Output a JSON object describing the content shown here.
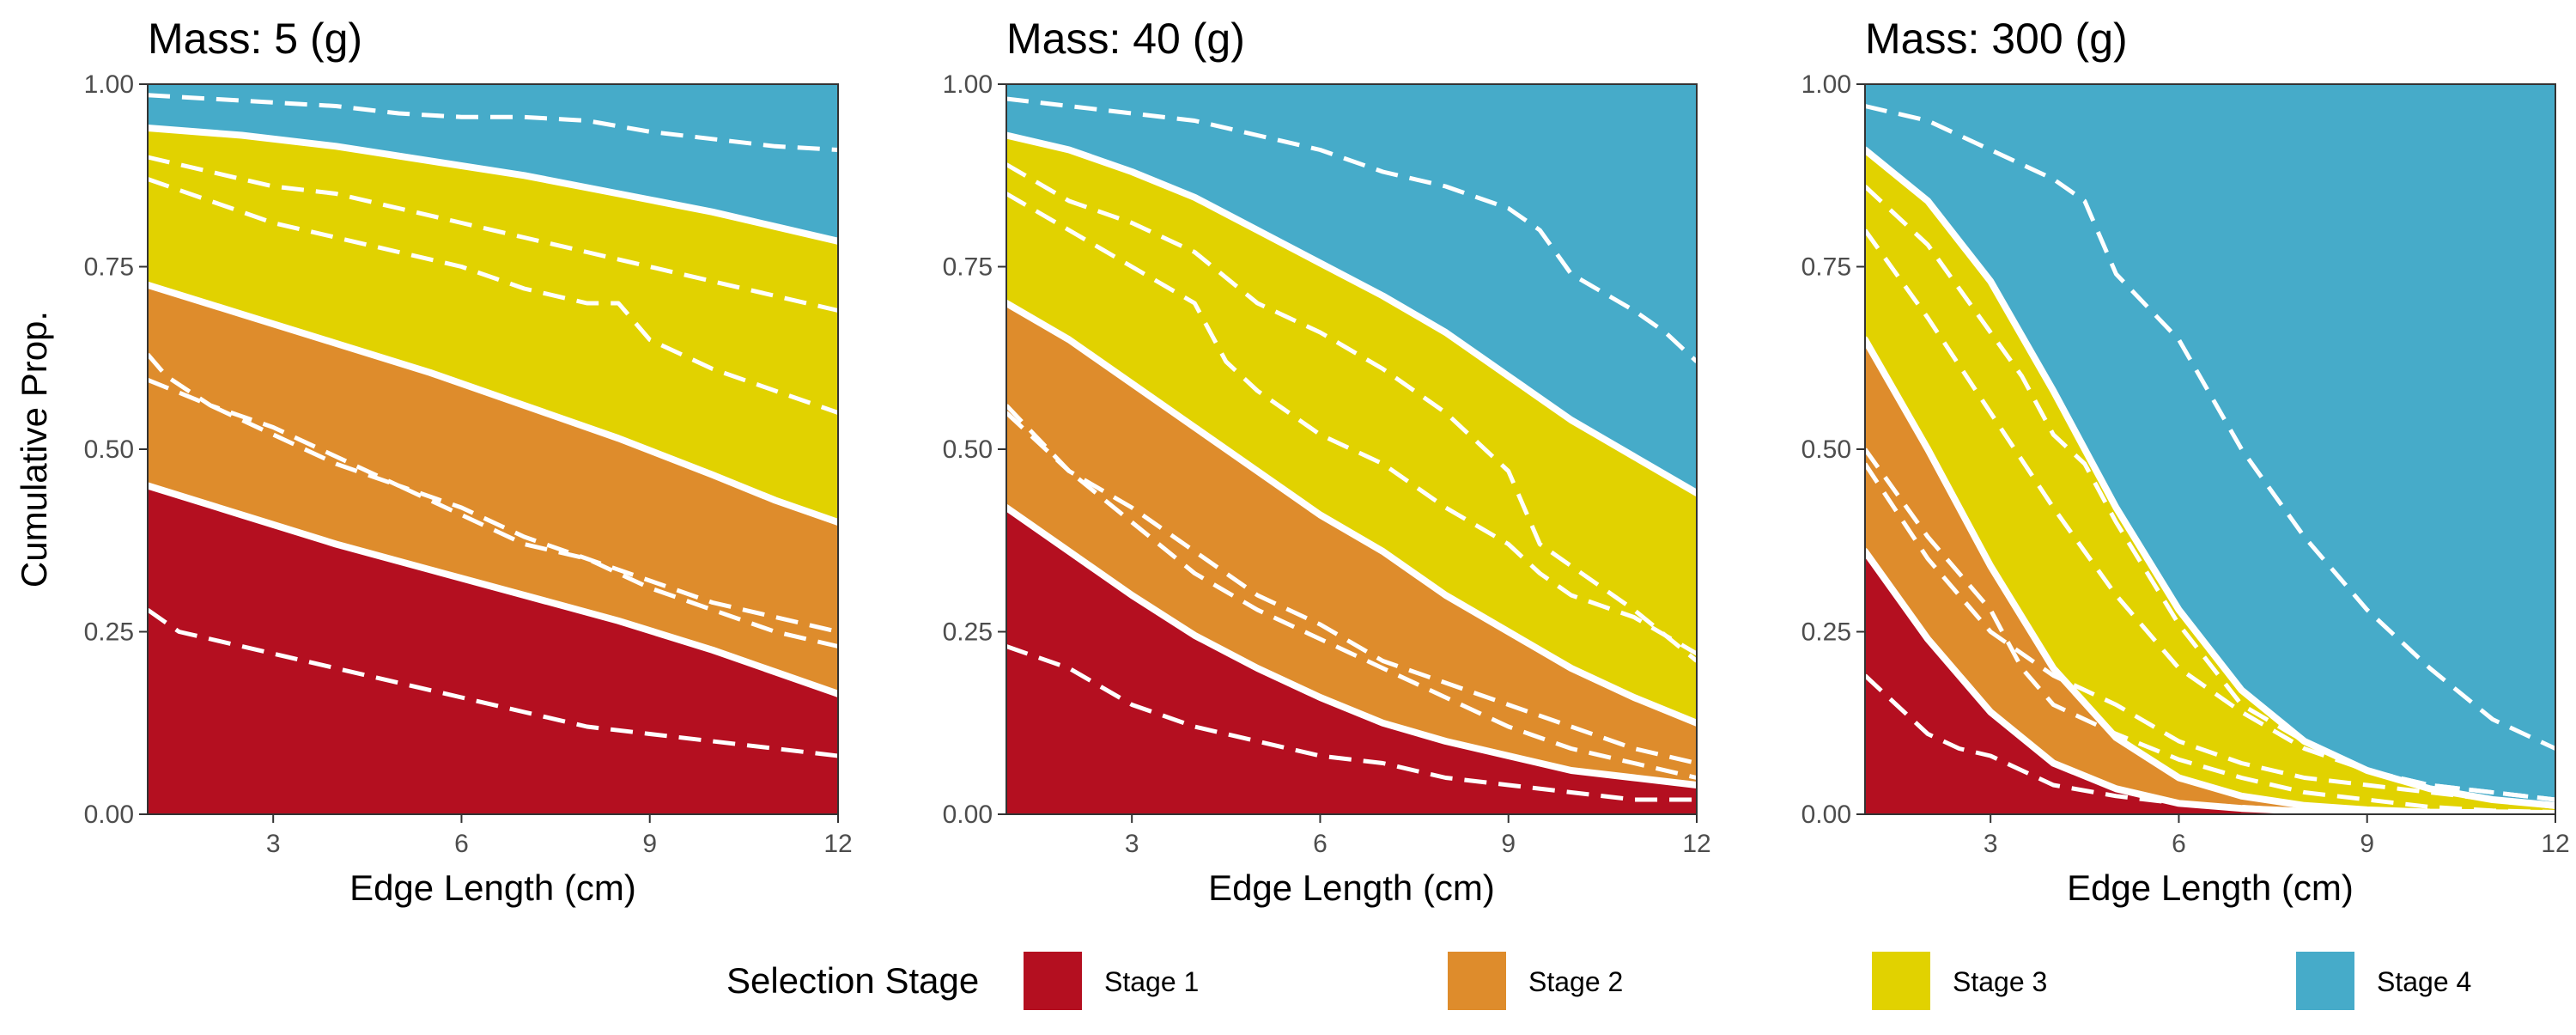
{
  "legend": {
    "title": "Selection Stage",
    "items": [
      {
        "label": "Stage 1",
        "color": "#B40F20"
      },
      {
        "label": "Stage 2",
        "color": "#DE8C2C"
      },
      {
        "label": "Stage 3",
        "color": "#E1D200"
      },
      {
        "label": "Stage 4",
        "color": "#46ABC9"
      }
    ]
  },
  "chart_data": [
    {
      "type": "area",
      "title": "Mass: 5 (g)",
      "xlabel": "Edge Length (cm)",
      "ylabel": "Cumulative Prop.",
      "xlim": [
        1,
        12
      ],
      "ylim": [
        0,
        1
      ],
      "x_ticks": [
        3,
        6,
        9,
        12
      ],
      "y_ticks": [
        0,
        0.25,
        0.5,
        0.75,
        1
      ],
      "y_tick_labels": [
        "0.00",
        "0.25",
        "0.50",
        "0.75",
        "1.00"
      ],
      "grid": false,
      "fitted_x": [
        1,
        2.5,
        4,
        5.5,
        7,
        8.5,
        10,
        11,
        12
      ],
      "fitted_boundaries": [
        {
          "name": "Stage 1",
          "values": [
            0.45,
            0.41,
            0.37,
            0.335,
            0.3,
            0.265,
            0.225,
            0.195,
            0.165
          ]
        },
        {
          "name": "Stage 2",
          "values": [
            0.725,
            0.685,
            0.645,
            0.605,
            0.56,
            0.515,
            0.465,
            0.43,
            0.4
          ]
        },
        {
          "name": "Stage 3",
          "values": [
            0.94,
            0.93,
            0.915,
            0.895,
            0.875,
            0.85,
            0.825,
            0.805,
            0.785
          ]
        }
      ],
      "empirical_boundaries": [
        {
          "x": [
            1,
            1.5,
            2,
            3,
            4,
            5,
            6,
            7,
            8,
            9,
            10,
            11,
            12
          ],
          "values": [
            0.28,
            0.25,
            0.24,
            0.22,
            0.2,
            0.18,
            0.16,
            0.14,
            0.12,
            0.11,
            0.1,
            0.09,
            0.08
          ]
        },
        {
          "x": [
            1,
            1.3,
            2,
            3,
            4,
            5,
            6,
            7,
            8,
            9,
            10,
            11,
            12
          ],
          "values": [
            0.63,
            0.6,
            0.56,
            0.53,
            0.49,
            0.45,
            0.42,
            0.38,
            0.35,
            0.32,
            0.29,
            0.27,
            0.25
          ]
        },
        {
          "x": [
            1,
            2,
            3,
            4,
            5,
            6,
            7,
            8,
            9,
            10,
            11,
            12
          ],
          "values": [
            0.595,
            0.56,
            0.52,
            0.48,
            0.45,
            0.41,
            0.37,
            0.35,
            0.31,
            0.28,
            0.25,
            0.23
          ]
        },
        {
          "x": [
            1,
            2,
            3,
            4,
            5,
            6,
            7,
            8,
            8.5,
            9,
            10,
            11,
            12
          ],
          "values": [
            0.87,
            0.84,
            0.81,
            0.79,
            0.77,
            0.75,
            0.72,
            0.7,
            0.7,
            0.65,
            0.61,
            0.58,
            0.55
          ]
        },
        {
          "x": [
            1,
            2,
            3,
            4,
            5,
            6,
            7,
            8,
            9,
            10,
            11,
            12
          ],
          "values": [
            0.9,
            0.88,
            0.86,
            0.85,
            0.83,
            0.81,
            0.79,
            0.77,
            0.75,
            0.73,
            0.71,
            0.69
          ]
        },
        {
          "x": [
            1,
            2,
            3,
            4,
            5,
            6,
            7,
            8,
            9,
            10,
            11,
            12
          ],
          "values": [
            0.985,
            0.98,
            0.975,
            0.97,
            0.96,
            0.955,
            0.955,
            0.95,
            0.935,
            0.925,
            0.915,
            0.91
          ]
        }
      ]
    },
    {
      "type": "area",
      "title": "Mass: 40 (g)",
      "xlabel": "Edge Length (cm)",
      "ylabel": "",
      "xlim": [
        1,
        12
      ],
      "ylim": [
        0,
        1
      ],
      "x_ticks": [
        3,
        6,
        9,
        12
      ],
      "y_ticks": [
        0,
        0.25,
        0.5,
        0.75,
        1
      ],
      "y_tick_labels": [
        "0.00",
        "0.25",
        "0.50",
        "0.75",
        "1.00"
      ],
      "grid": false,
      "fitted_x": [
        1,
        2,
        3,
        4,
        5,
        6,
        7,
        8,
        9,
        10,
        11,
        12
      ],
      "fitted_boundaries": [
        {
          "name": "Stage 1",
          "values": [
            0.42,
            0.36,
            0.3,
            0.245,
            0.2,
            0.16,
            0.125,
            0.1,
            0.08,
            0.06,
            0.05,
            0.04
          ]
        },
        {
          "name": "Stage 2",
          "values": [
            0.7,
            0.65,
            0.59,
            0.53,
            0.47,
            0.41,
            0.36,
            0.3,
            0.25,
            0.2,
            0.16,
            0.125
          ]
        },
        {
          "name": "Stage 3",
          "values": [
            0.93,
            0.91,
            0.88,
            0.845,
            0.8,
            0.755,
            0.71,
            0.66,
            0.6,
            0.54,
            0.49,
            0.44
          ]
        }
      ],
      "empirical_boundaries": [
        {
          "x": [
            1,
            2,
            3,
            4,
            5,
            6,
            7,
            8,
            9,
            10,
            11,
            12
          ],
          "values": [
            0.23,
            0.2,
            0.15,
            0.12,
            0.1,
            0.08,
            0.07,
            0.05,
            0.04,
            0.03,
            0.02,
            0.02
          ]
        },
        {
          "x": [
            1,
            2,
            3,
            4,
            5,
            6,
            7,
            8,
            9,
            10,
            11,
            12
          ],
          "values": [
            0.56,
            0.47,
            0.4,
            0.33,
            0.28,
            0.24,
            0.2,
            0.16,
            0.12,
            0.09,
            0.07,
            0.05
          ]
        },
        {
          "x": [
            1,
            2,
            3,
            4,
            5,
            6,
            7,
            8,
            9,
            10,
            11,
            12
          ],
          "values": [
            0.55,
            0.47,
            0.42,
            0.36,
            0.3,
            0.26,
            0.21,
            0.18,
            0.15,
            0.12,
            0.09,
            0.07
          ]
        },
        {
          "x": [
            1,
            2,
            3,
            4,
            4.5,
            5,
            6,
            7,
            8,
            9,
            9.5,
            10,
            11,
            12
          ],
          "values": [
            0.85,
            0.8,
            0.75,
            0.7,
            0.62,
            0.58,
            0.52,
            0.48,
            0.42,
            0.37,
            0.33,
            0.3,
            0.27,
            0.22
          ]
        },
        {
          "x": [
            1,
            2,
            3,
            4,
            5,
            6,
            7,
            8,
            9,
            9.5,
            10,
            11,
            12
          ],
          "values": [
            0.89,
            0.84,
            0.81,
            0.77,
            0.7,
            0.66,
            0.61,
            0.55,
            0.47,
            0.37,
            0.34,
            0.28,
            0.21
          ]
        },
        {
          "x": [
            1,
            2,
            3,
            4,
            5,
            6,
            7,
            8,
            9,
            9.5,
            10,
            11,
            11.5,
            12
          ],
          "values": [
            0.98,
            0.97,
            0.96,
            0.95,
            0.93,
            0.91,
            0.88,
            0.86,
            0.83,
            0.8,
            0.74,
            0.69,
            0.66,
            0.62
          ]
        }
      ]
    },
    {
      "type": "area",
      "title": "Mass: 300 (g)",
      "xlabel": "Edge Length (cm)",
      "ylabel": "",
      "xlim": [
        1,
        12
      ],
      "ylim": [
        0,
        1
      ],
      "x_ticks": [
        3,
        6,
        9,
        12
      ],
      "y_ticks": [
        0,
        0.25,
        0.5,
        0.75,
        1
      ],
      "y_tick_labels": [
        "0.00",
        "0.25",
        "0.50",
        "0.75",
        "1.00"
      ],
      "grid": false,
      "fitted_x": [
        1,
        2,
        3,
        4,
        5,
        6,
        7,
        8,
        9,
        10,
        11,
        12
      ],
      "fitted_boundaries": [
        {
          "name": "Stage 1",
          "values": [
            0.36,
            0.24,
            0.14,
            0.07,
            0.035,
            0.015,
            0.008,
            0.004,
            0.002,
            0.001,
            0.0005,
            0.0002
          ]
        },
        {
          "name": "Stage 2",
          "values": [
            0.65,
            0.5,
            0.34,
            0.2,
            0.105,
            0.05,
            0.025,
            0.012,
            0.006,
            0.003,
            0.002,
            0.001
          ]
        },
        {
          "name": "Stage 3",
          "values": [
            0.91,
            0.84,
            0.73,
            0.58,
            0.42,
            0.28,
            0.17,
            0.1,
            0.06,
            0.035,
            0.02,
            0.012
          ]
        }
      ],
      "empirical_boundaries": [
        {
          "x": [
            1,
            1.5,
            2,
            2.5,
            3,
            3.5,
            4,
            5,
            6,
            7,
            8,
            9,
            10,
            11,
            12
          ],
          "values": [
            0.19,
            0.15,
            0.11,
            0.09,
            0.08,
            0.06,
            0.04,
            0.025,
            0.015,
            0.01,
            0.005,
            0.003,
            0.002,
            0.001,
            0
          ]
        },
        {
          "x": [
            1,
            2,
            3,
            3.5,
            4,
            4.5,
            5,
            6,
            7,
            8,
            9,
            10,
            11,
            12
          ],
          "values": [
            0.5,
            0.38,
            0.28,
            0.2,
            0.15,
            0.13,
            0.11,
            0.075,
            0.05,
            0.03,
            0.02,
            0.01,
            0.005,
            0.003
          ]
        },
        {
          "x": [
            1,
            2,
            3,
            4,
            5,
            6,
            7,
            8,
            9,
            10,
            11,
            12
          ],
          "values": [
            0.48,
            0.35,
            0.25,
            0.19,
            0.15,
            0.1,
            0.07,
            0.05,
            0.04,
            0.03,
            0.02,
            0.01
          ]
        },
        {
          "x": [
            1,
            2,
            3,
            4,
            4.5,
            5,
            6,
            7,
            8,
            9,
            10,
            11,
            12
          ],
          "values": [
            0.8,
            0.68,
            0.55,
            0.42,
            0.36,
            0.3,
            0.2,
            0.14,
            0.09,
            0.06,
            0.04,
            0.03,
            0.02
          ]
        },
        {
          "x": [
            1,
            2,
            3,
            3.5,
            4,
            4.5,
            5,
            6,
            7,
            8,
            9,
            10,
            11,
            12
          ],
          "values": [
            0.86,
            0.78,
            0.66,
            0.6,
            0.52,
            0.48,
            0.4,
            0.26,
            0.15,
            0.1,
            0.06,
            0.04,
            0.03,
            0.02
          ]
        },
        {
          "x": [
            1,
            2,
            3,
            4,
            4.5,
            5,
            6,
            7,
            8,
            9,
            10,
            11,
            12
          ],
          "values": [
            0.97,
            0.95,
            0.91,
            0.87,
            0.84,
            0.74,
            0.65,
            0.5,
            0.38,
            0.28,
            0.2,
            0.13,
            0.09
          ]
        }
      ]
    }
  ]
}
